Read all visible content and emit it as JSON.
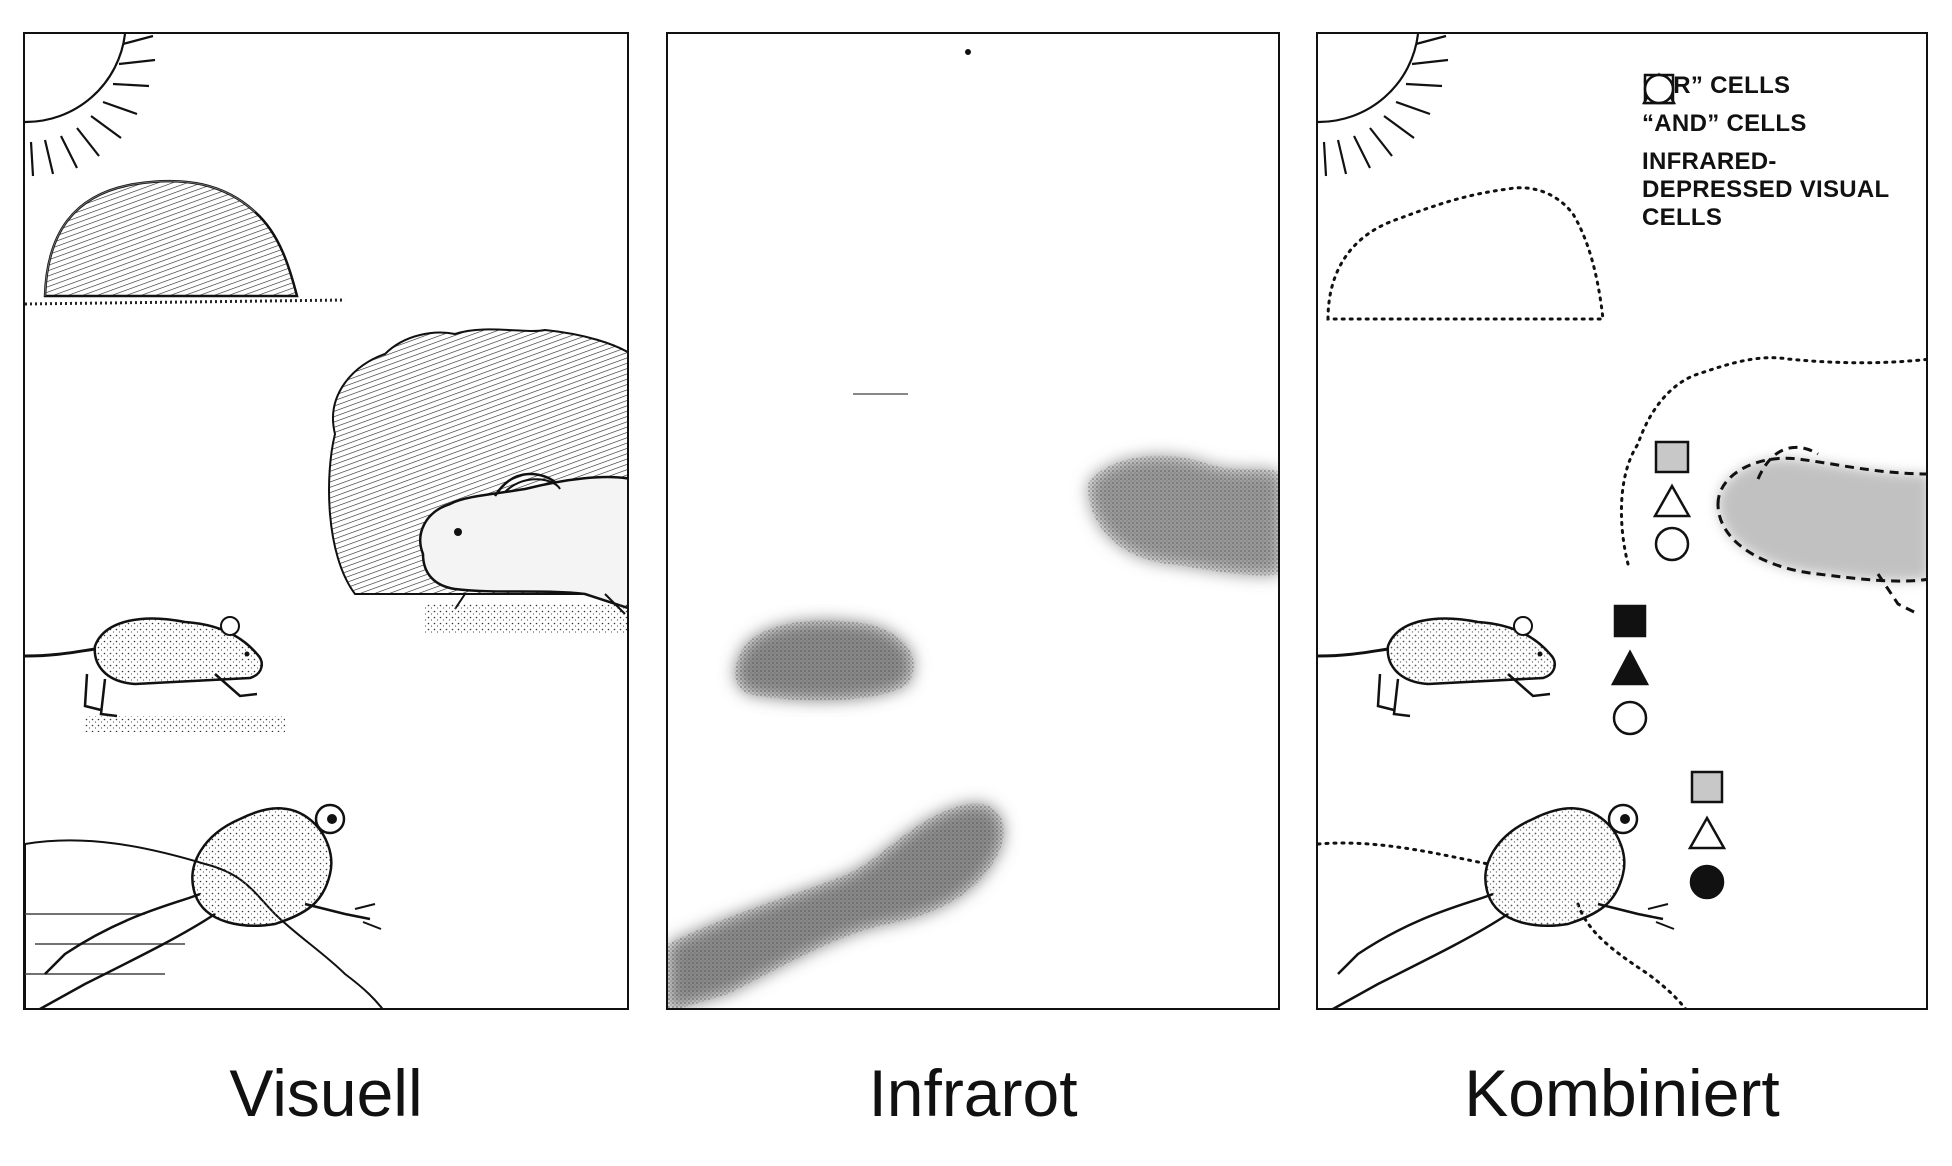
{
  "captions": {
    "visual": "Visuell",
    "infrared": "Infrarot",
    "combined": "Kombiniert"
  },
  "legend": [
    {
      "symbol": "square",
      "label": "“OR” CELLS"
    },
    {
      "symbol": "triangle",
      "label": "“AND” CELLS"
    },
    {
      "symbol": "circle",
      "label": "INFRARED-DEPRESSED VISUAL CELLS"
    }
  ],
  "colors": {
    "ink": "#111111",
    "heat": "#6b6b6b",
    "shaded_fill": "#bdbdbd"
  }
}
